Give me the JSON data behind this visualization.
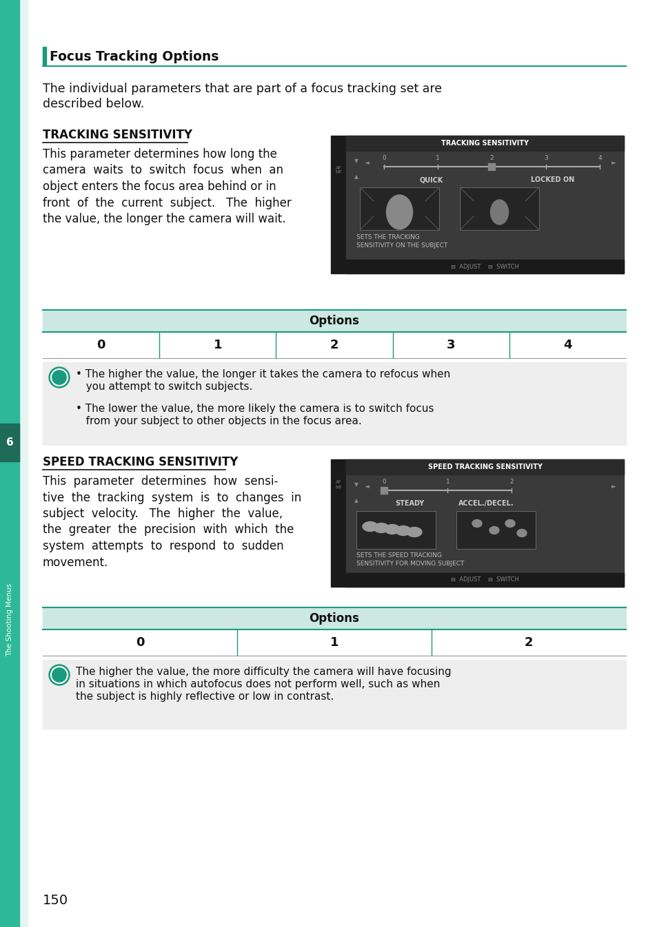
{
  "page_bg": "#ffffff",
  "sidebar_color": "#2db89a",
  "sidebar_text": "The Shooting Menus",
  "sidebar_num": "6",
  "page_number": "150",
  "accent_color": "#1a9b7d",
  "section_title": "Focus Tracking Options",
  "section_intro_line1": "The individual parameters that are part of a focus tracking set are",
  "section_intro_line2": "described below.",
  "subsection1_title": "TRACKING SENSITIVITY",
  "subsection1_body": [
    "This parameter determines how long the",
    "camera  waits  to  switch  focus  when  an",
    "object enters the focus area behind or in",
    "front  of  the  current  subject.   The  higher",
    "the value, the longer the camera will wait."
  ],
  "table1_header": "Options",
  "table1_values": [
    "0",
    "1",
    "2",
    "3",
    "4"
  ],
  "note1_bullet1_line1": "• The higher the value, the longer it takes the camera to refocus when",
  "note1_bullet1_line2": "   you attempt to switch subjects.",
  "note1_bullet2_line1": "• The lower the value, the more likely the camera is to switch focus",
  "note1_bullet2_line2": "   from your subject to other objects in the focus area.",
  "subsection2_title": "SPEED TRACKING SENSITIVITY",
  "subsection2_body": [
    "This  parameter  determines  how  sensi-",
    "tive  the  tracking  system  is  to  changes  in",
    "subject  velocity.   The  higher  the  value,",
    "the  greater  the  precision  with  which  the",
    "system  attempts  to  respond  to  sudden",
    "movement."
  ],
  "table2_header": "Options",
  "table2_values": [
    "0",
    "1",
    "2"
  ],
  "note2_text_line1": "The higher the value, the more difficulty the camera will have focusing",
  "note2_text_line2": "in situations in which autofocus does not perform well, such as when",
  "note2_text_line3": "the subject is highly reflective or low in contrast.",
  "cam1_title": "TRACKING SENSITIVITY",
  "cam1_labels": [
    "QUICK",
    "LOCKED ON"
  ],
  "cam1_desc_line1": "SETS THE TRACKING",
  "cam1_desc_line2": "SENSITIVITY ON THE SUBJECT",
  "cam2_title": "SPEED TRACKING SENSITIVITY",
  "cam2_labels": [
    "STEADY",
    "ACCEL./DECEL."
  ],
  "cam2_desc_line1": "SETS THE SPEED TRACKING",
  "cam2_desc_line2": "SENSITIVITY FOR MOVING SUBJECT",
  "table_header_bg": "#cde8e3",
  "note_bg": "#eeeeee",
  "table_border_color": "#1a9b7d",
  "cam_bg": "#333333",
  "cam_title_bg": "#222222",
  "cam_body_bg": "#444444"
}
